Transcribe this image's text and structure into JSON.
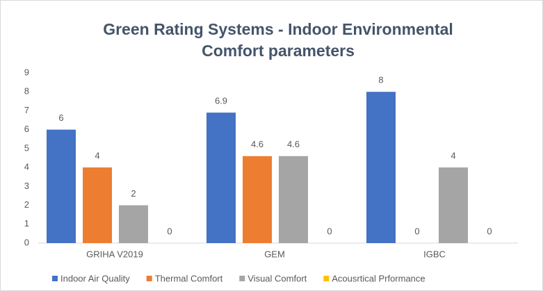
{
  "chart_data": {
    "type": "bar",
    "title": [
      "Green Rating Systems - Indoor Environmental",
      "Comfort  parameters"
    ],
    "categories": [
      "GRIHA V2019",
      "GEM",
      "IGBC"
    ],
    "series": [
      {
        "name": "Indoor Air Quality",
        "color": "#4472c4",
        "values": [
          6,
          6.9,
          8
        ]
      },
      {
        "name": "Thermal Comfort",
        "color": "#ed7d31",
        "values": [
          4,
          4.6,
          0
        ]
      },
      {
        "name": "Visual Comfort",
        "color": "#a5a5a5",
        "values": [
          2,
          4.6,
          4
        ]
      },
      {
        "name": "Acousrtical Prformance",
        "color": "#ffc000",
        "values": [
          0,
          0,
          0
        ]
      }
    ],
    "ylim": [
      0,
      9
    ],
    "yticks": [
      0,
      1,
      2,
      3,
      4,
      5,
      6,
      7,
      8,
      9
    ],
    "grid": false,
    "legend": "bottom"
  }
}
